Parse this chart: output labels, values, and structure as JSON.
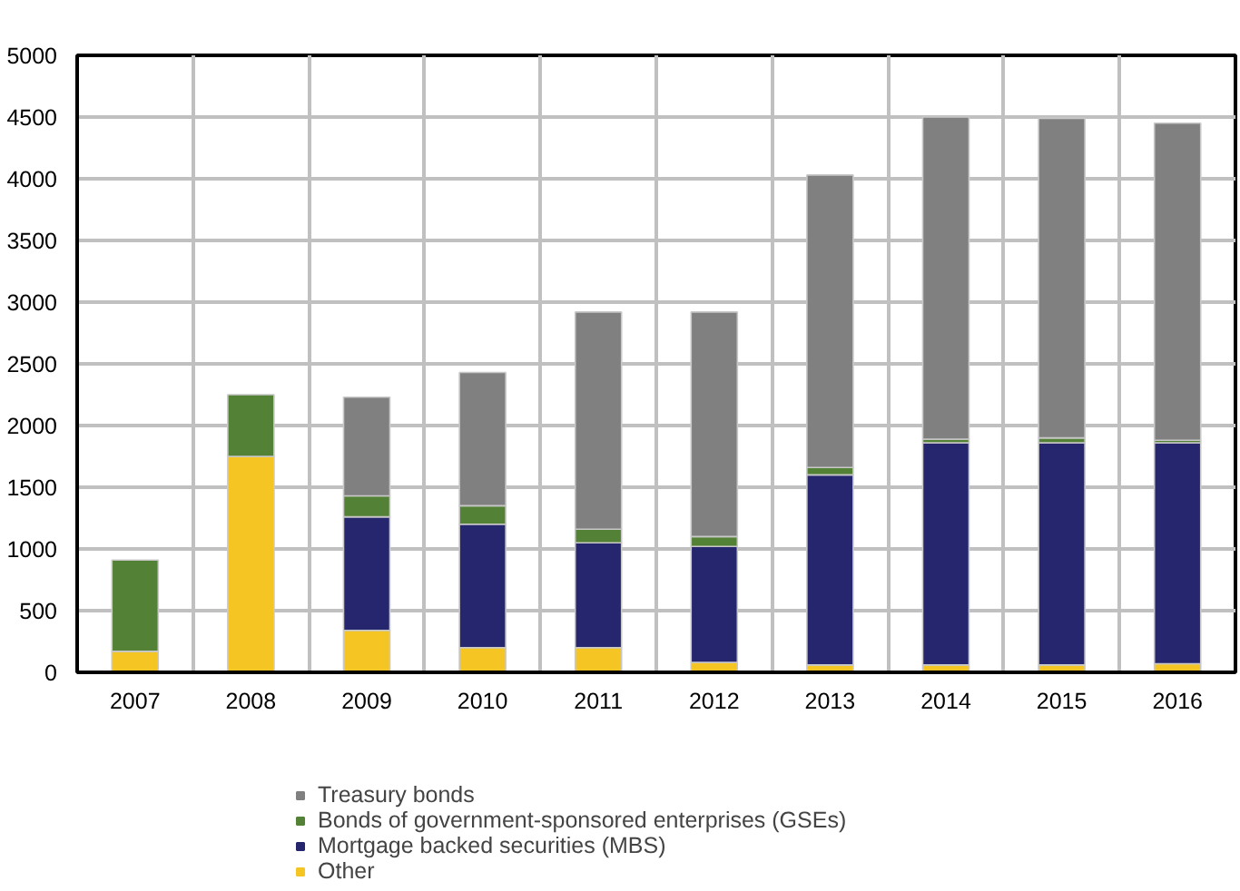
{
  "chart_data": {
    "type": "bar",
    "stacked": true,
    "categories": [
      "2007",
      "2008",
      "2009",
      "2010",
      "2011",
      "2012",
      "2013",
      "2014",
      "2015",
      "2016"
    ],
    "series": [
      {
        "name": "Other",
        "color": "#f5c623",
        "values": [
          170,
          1750,
          340,
          200,
          200,
          80,
          60,
          60,
          60,
          70
        ]
      },
      {
        "name": "Mortgage backed securities (MBS)",
        "color": "#25266e",
        "values": [
          0,
          0,
          920,
          1000,
          850,
          940,
          1540,
          1800,
          1800,
          1790
        ]
      },
      {
        "name": "Bonds of government-sponsored enterprises (GSEs)",
        "color": "#538135",
        "values": [
          740,
          500,
          170,
          150,
          110,
          80,
          60,
          30,
          40,
          20
        ]
      },
      {
        "name": "Treasury bonds",
        "color": "#808080",
        "values": [
          0,
          0,
          800,
          1080,
          1760,
          1820,
          2370,
          2610,
          2590,
          2570
        ]
      }
    ],
    "ylim": [
      0,
      5000
    ],
    "yticks": [
      0,
      500,
      1000,
      1500,
      2000,
      2500,
      3000,
      3500,
      4000,
      4500,
      5000
    ],
    "grid": true,
    "legend": "bottom"
  }
}
